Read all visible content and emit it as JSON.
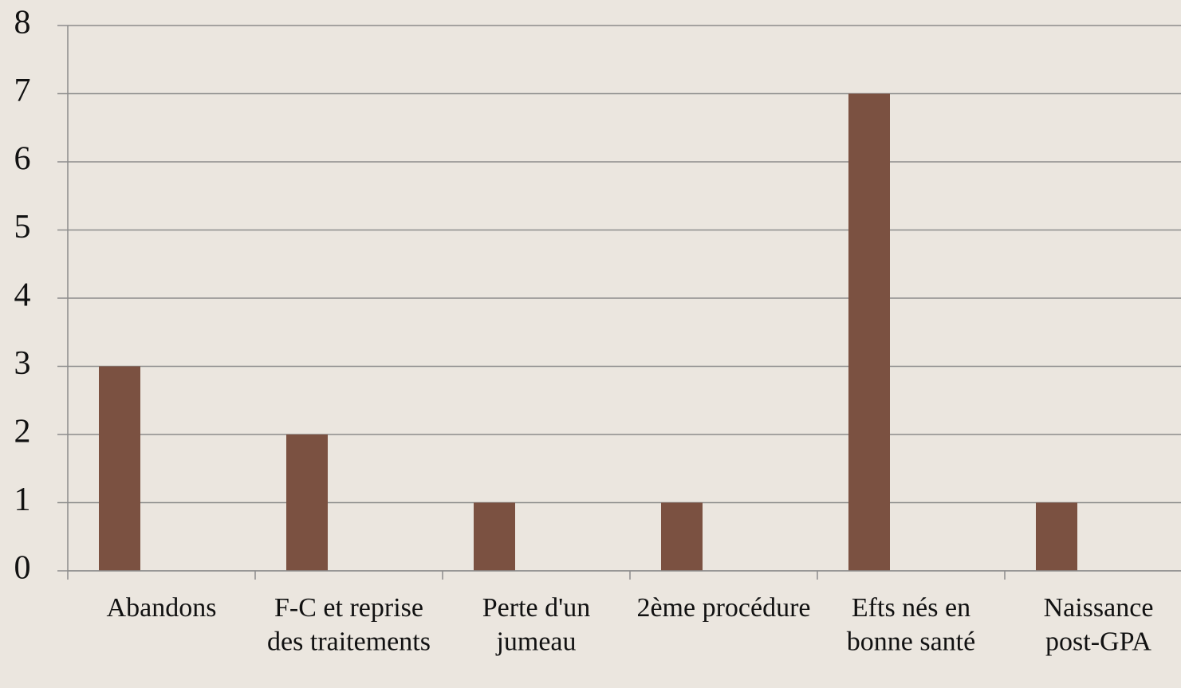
{
  "chart_data": {
    "type": "bar",
    "categories": [
      "Abandons",
      "F-C et reprise des traitements",
      "Perte d'un jumeau",
      "2ème procédure",
      "Efts nés en bonne santé",
      "Naissance post-GPA"
    ],
    "values": [
      3,
      2,
      1,
      1,
      7,
      1
    ],
    "color": "#7b5141",
    "ylim": [
      0,
      8
    ],
    "yticks": [
      0,
      1,
      2,
      3,
      4,
      5,
      6,
      7,
      8
    ],
    "grid": true
  }
}
